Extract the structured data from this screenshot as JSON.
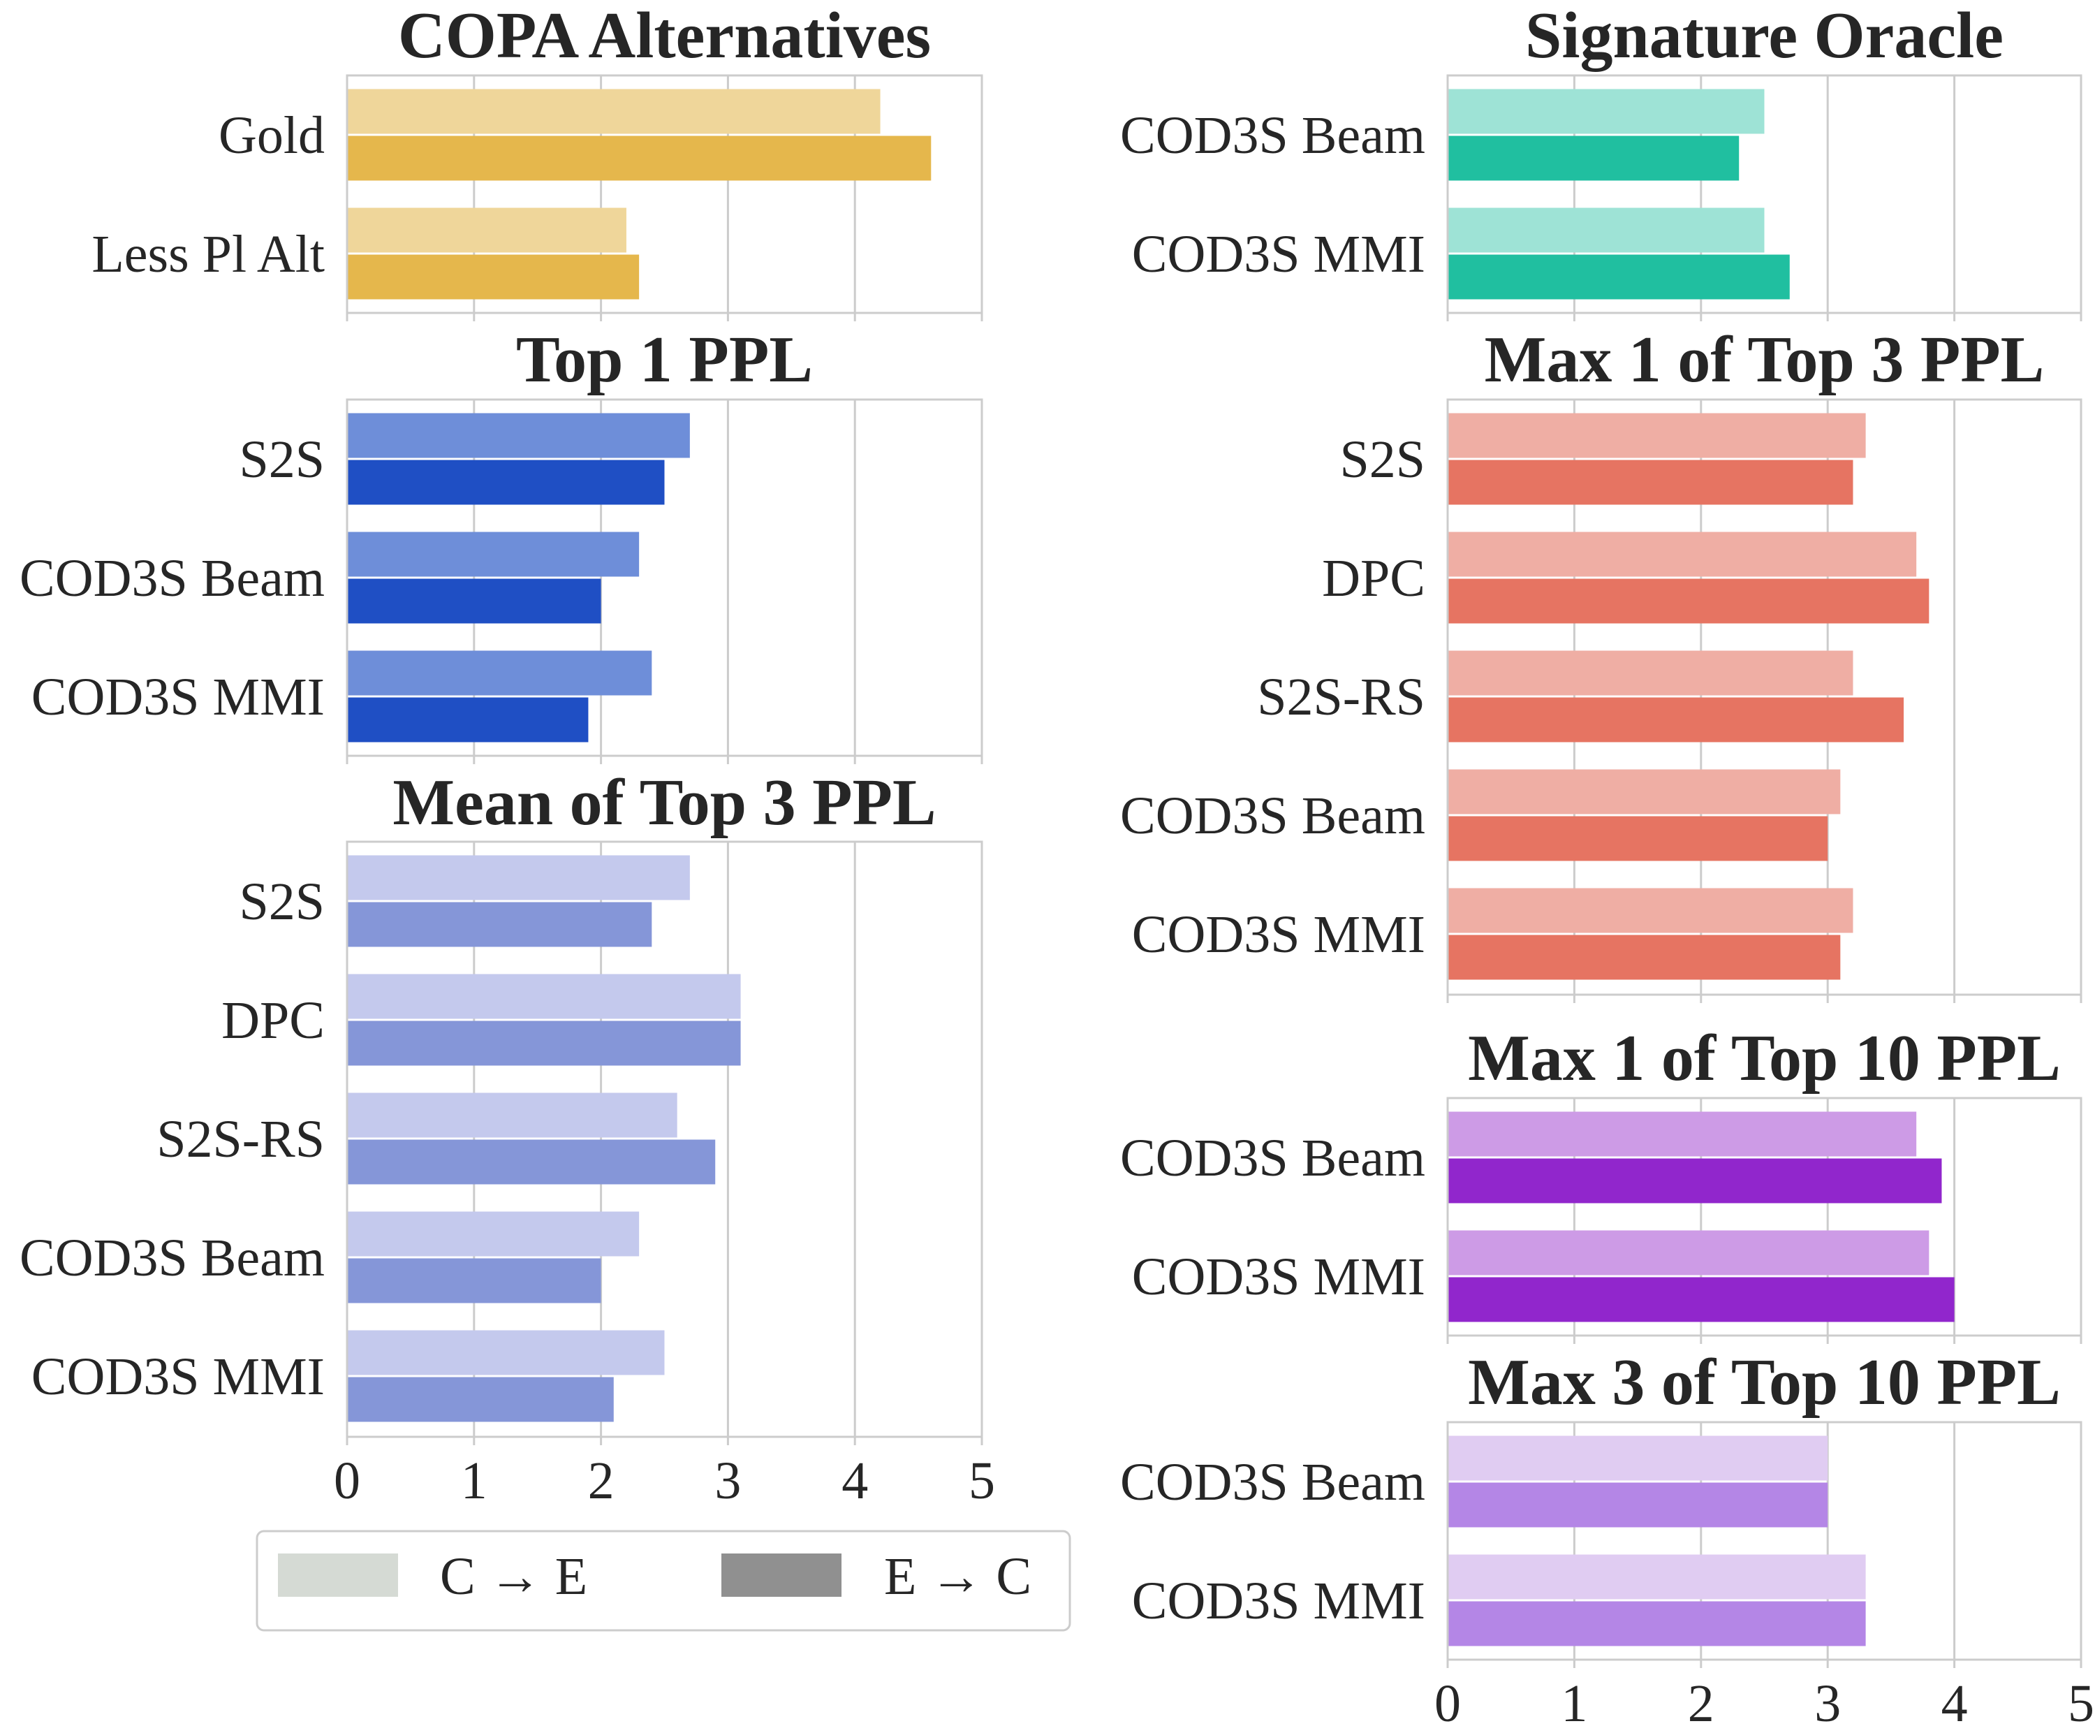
{
  "legend": {
    "items": [
      {
        "label": "C → E",
        "color": "#d5dad4"
      },
      {
        "label": "E → C",
        "color": "#909090"
      }
    ]
  },
  "chart_data": [
    {
      "type": "bar",
      "orientation": "horizontal",
      "title": "COPA Alternatives",
      "categories": [
        "Gold",
        "Less Pl Alt"
      ],
      "series": [
        {
          "name": "C → E",
          "values": [
            4.2,
            2.2
          ],
          "color": "#efd69a"
        },
        {
          "name": "E → C",
          "values": [
            4.6,
            2.3
          ],
          "color": "#e5b74c"
        }
      ],
      "xlim": [
        0,
        5
      ],
      "show_x_ticks": false
    },
    {
      "type": "bar",
      "orientation": "horizontal",
      "title": "Top 1 PPL",
      "categories": [
        "S2S",
        "COD3S Beam",
        "COD3S MMI"
      ],
      "series": [
        {
          "name": "C → E",
          "values": [
            2.7,
            2.3,
            2.4
          ],
          "color": "#6e8ed9"
        },
        {
          "name": "E → C",
          "values": [
            2.5,
            2.0,
            1.9
          ],
          "color": "#1f4fc4"
        }
      ],
      "xlim": [
        0,
        5
      ],
      "show_x_ticks": false
    },
    {
      "type": "bar",
      "orientation": "horizontal",
      "title": "Mean of Top 3 PPL",
      "categories": [
        "S2S",
        "DPC",
        "S2S-RS",
        "COD3S Beam",
        "COD3S MMI"
      ],
      "series": [
        {
          "name": "C → E",
          "values": [
            2.7,
            3.1,
            2.6,
            2.3,
            2.5
          ],
          "color": "#c4c9ed"
        },
        {
          "name": "E → C",
          "values": [
            2.4,
            3.1,
            2.9,
            2.0,
            2.1
          ],
          "color": "#8596d8"
        }
      ],
      "xlim": [
        0,
        5
      ],
      "show_x_ticks": true,
      "x_ticks": [
        "0",
        "1",
        "2",
        "3",
        "4",
        "5"
      ]
    },
    {
      "type": "bar",
      "orientation": "horizontal",
      "title": "Signature Oracle",
      "categories": [
        "COD3S Beam",
        "COD3S MMI"
      ],
      "series": [
        {
          "name": "C → E",
          "values": [
            2.5,
            2.5
          ],
          "color": "#9ee3d6"
        },
        {
          "name": "E → C",
          "values": [
            2.3,
            2.7
          ],
          "color": "#20bfa0"
        }
      ],
      "xlim": [
        0,
        5
      ],
      "show_x_ticks": false
    },
    {
      "type": "bar",
      "orientation": "horizontal",
      "title": "Max 1 of Top 3 PPL",
      "categories": [
        "S2S",
        "DPC",
        "S2S-RS",
        "COD3S Beam",
        "COD3S MMI"
      ],
      "series": [
        {
          "name": "C → E",
          "values": [
            3.3,
            3.7,
            3.2,
            3.1,
            3.2
          ],
          "color": "#efaea4"
        },
        {
          "name": "E → C",
          "values": [
            3.2,
            3.8,
            3.6,
            3.0,
            3.1
          ],
          "color": "#e67462"
        }
      ],
      "xlim": [
        0,
        5
      ],
      "show_x_ticks": false
    },
    {
      "type": "bar",
      "orientation": "horizontal",
      "title": "Max 1 of Top 10 PPL",
      "categories": [
        "COD3S Beam",
        "COD3S MMI"
      ],
      "series": [
        {
          "name": "C → E",
          "values": [
            3.7,
            3.8
          ],
          "color": "#cd9be6"
        },
        {
          "name": "E → C",
          "values": [
            3.9,
            4.0
          ],
          "color": "#9126cc"
        }
      ],
      "xlim": [
        0,
        5
      ],
      "show_x_ticks": false
    },
    {
      "type": "bar",
      "orientation": "horizontal",
      "title": "Max 3 of Top 10 PPL",
      "categories": [
        "COD3S Beam",
        "COD3S MMI"
      ],
      "series": [
        {
          "name": "C → E",
          "values": [
            3.0,
            3.3
          ],
          "color": "#e0ccf2"
        },
        {
          "name": "E → C",
          "values": [
            3.0,
            3.3
          ],
          "color": "#b486e6"
        }
      ],
      "xlim": [
        0,
        5
      ],
      "show_x_ticks": true,
      "x_ticks": [
        "0",
        "1",
        "2",
        "3",
        "4",
        "5"
      ]
    }
  ]
}
